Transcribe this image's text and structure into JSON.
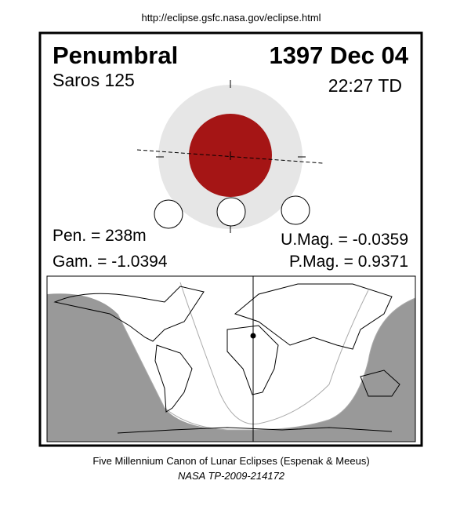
{
  "header": {
    "url": "http://eclipse.gsfc.nasa.gov/eclipse.html"
  },
  "eclipse": {
    "type": "Penumbral",
    "date": "1397 Dec 04",
    "saros": "Saros 125",
    "time": "22:27 TD",
    "penumbral_duration": "Pen. = 238m",
    "gamma": "Gam. = -1.0394",
    "umbral_magnitude": "U.Mag. = -0.0359",
    "penumbral_magnitude": "P.Mag. = 0.9371"
  },
  "footer": {
    "source": "Five Millennium Canon of Lunar Eclipses (Espenak & Meeus)",
    "reference": "NASA TP-2009-214172"
  }
}
